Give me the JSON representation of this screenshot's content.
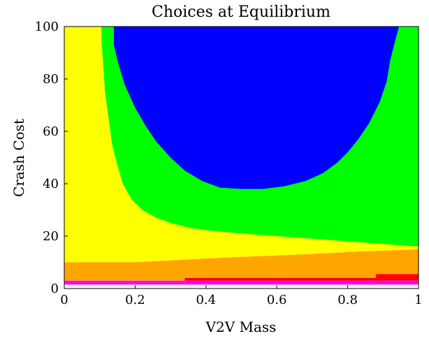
{
  "chart_data": {
    "type": "heatmap",
    "title": "Choices at Equilibrium",
    "xlabel": "V2V Mass",
    "ylabel": "Crash Cost",
    "xlim": [
      0,
      1
    ],
    "ylim": [
      0,
      100
    ],
    "x_ticks": [
      "0",
      "0.2",
      "0.4",
      "0.6",
      "0.8",
      "1"
    ],
    "y_ticks": [
      "0",
      "20",
      "40",
      "60",
      "80",
      "100"
    ],
    "grid": false,
    "legend": "none",
    "region_colors": {
      "blue": "#0000ff",
      "green": "#00ff00",
      "yellow": "#ffff00",
      "orange": "#ffa500",
      "red": "#ff0000",
      "magenta": "#ff00ff"
    },
    "regions": [
      {
        "color": "magenta",
        "points": [
          [
            0,
            1.5
          ],
          [
            1,
            1.5
          ],
          [
            1,
            3
          ],
          [
            0,
            3
          ]
        ]
      },
      {
        "color": "orange",
        "points": [
          [
            0,
            3
          ],
          [
            0.34,
            3
          ],
          [
            0.34,
            4
          ],
          [
            0.88,
            4
          ],
          [
            0.88,
            5.5
          ],
          [
            1,
            5.5
          ],
          [
            1,
            15
          ],
          [
            0.81,
            14
          ],
          [
            0.67,
            13
          ],
          [
            0.48,
            12
          ],
          [
            0.34,
            11
          ],
          [
            0.19,
            10
          ],
          [
            0,
            10
          ]
        ]
      },
      {
        "color": "red",
        "points": [
          [
            0.34,
            3
          ],
          [
            1,
            3
          ],
          [
            1,
            5.5
          ],
          [
            0.88,
            5.5
          ],
          [
            0.88,
            4
          ],
          [
            0.34,
            4
          ]
        ]
      },
      {
        "color": "yellow",
        "points": [
          [
            0,
            10
          ],
          [
            0.19,
            10
          ],
          [
            0.34,
            11
          ],
          [
            0.48,
            12
          ],
          [
            0.67,
            13
          ],
          [
            0.81,
            14
          ],
          [
            1,
            15
          ],
          [
            1,
            16
          ],
          [
            0.9,
            17
          ],
          [
            0.8,
            18
          ],
          [
            0.7,
            19
          ],
          [
            0.6,
            20
          ],
          [
            0.5,
            21
          ],
          [
            0.42,
            22
          ],
          [
            0.36,
            23
          ],
          [
            0.3,
            25
          ],
          [
            0.26,
            27
          ],
          [
            0.22,
            30
          ],
          [
            0.19,
            34
          ],
          [
            0.165,
            40
          ],
          [
            0.15,
            47
          ],
          [
            0.135,
            55
          ],
          [
            0.125,
            65
          ],
          [
            0.115,
            75
          ],
          [
            0.11,
            85
          ],
          [
            0.105,
            95
          ],
          [
            0.105,
            100
          ],
          [
            0,
            100
          ]
        ]
      },
      {
        "color": "green",
        "points": [
          [
            0.105,
            100
          ],
          [
            0.105,
            95
          ],
          [
            0.11,
            85
          ],
          [
            0.115,
            75
          ],
          [
            0.125,
            65
          ],
          [
            0.135,
            55
          ],
          [
            0.15,
            47
          ],
          [
            0.165,
            40
          ],
          [
            0.19,
            34
          ],
          [
            0.22,
            30
          ],
          [
            0.26,
            27
          ],
          [
            0.3,
            25
          ],
          [
            0.36,
            23
          ],
          [
            0.42,
            22
          ],
          [
            0.5,
            21
          ],
          [
            0.6,
            20
          ],
          [
            0.7,
            19
          ],
          [
            0.8,
            18
          ],
          [
            0.9,
            17
          ],
          [
            1,
            16
          ],
          [
            1,
            100
          ]
        ]
      },
      {
        "color": "blue",
        "points": [
          [
            0.14,
            100
          ],
          [
            0.14,
            93
          ],
          [
            0.15,
            87
          ],
          [
            0.17,
            78
          ],
          [
            0.2,
            69
          ],
          [
            0.23,
            62
          ],
          [
            0.26,
            56
          ],
          [
            0.3,
            50
          ],
          [
            0.34,
            45
          ],
          [
            0.39,
            41
          ],
          [
            0.44,
            38.5
          ],
          [
            0.5,
            38
          ],
          [
            0.56,
            38
          ],
          [
            0.62,
            39
          ],
          [
            0.68,
            41
          ],
          [
            0.73,
            44
          ],
          [
            0.77,
            48
          ],
          [
            0.8,
            52
          ],
          [
            0.83,
            57
          ],
          [
            0.86,
            63
          ],
          [
            0.89,
            71
          ],
          [
            0.91,
            79
          ],
          [
            0.92,
            87
          ],
          [
            0.935,
            95
          ],
          [
            0.945,
            100
          ]
        ]
      }
    ]
  }
}
